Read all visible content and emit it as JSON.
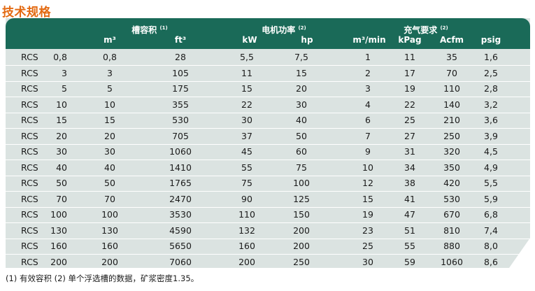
{
  "title": "技术规格",
  "header": {
    "tank_volume": "槽容积",
    "tank_volume_note": "(1)",
    "motor_power": "电机功率",
    "motor_power_note": "(2)",
    "air_req": "充气要求",
    "air_req_note": "(2)",
    "units": [
      "m³",
      "ft³",
      "kW",
      "hp",
      "m³/min",
      "kPag",
      "Acfm",
      "psig"
    ]
  },
  "rows": [
    {
      "model": "RCS",
      "size": "0,8",
      "m3": "0,8",
      "ft3": "28",
      "kw": "5,5",
      "hp": "7,5",
      "m3min": "1",
      "kpag": "11",
      "acfm": "35",
      "psig": "1,6"
    },
    {
      "model": "RCS",
      "size": "3",
      "m3": "3",
      "ft3": "105",
      "kw": "11",
      "hp": "15",
      "m3min": "2",
      "kpag": "17",
      "acfm": "70",
      "psig": "2,5"
    },
    {
      "model": "RCS",
      "size": "5",
      "m3": "5",
      "ft3": "175",
      "kw": "15",
      "hp": "20",
      "m3min": "3",
      "kpag": "19",
      "acfm": "110",
      "psig": "2,8"
    },
    {
      "model": "RCS",
      "size": "10",
      "m3": "10",
      "ft3": "355",
      "kw": "22",
      "hp": "30",
      "m3min": "4",
      "kpag": "22",
      "acfm": "140",
      "psig": "3,2"
    },
    {
      "model": "RCS",
      "size": "15",
      "m3": "15",
      "ft3": "530",
      "kw": "30",
      "hp": "40",
      "m3min": "6",
      "kpag": "25",
      "acfm": "210",
      "psig": "3,6"
    },
    {
      "model": "RCS",
      "size": "20",
      "m3": "20",
      "ft3": "705",
      "kw": "37",
      "hp": "50",
      "m3min": "7",
      "kpag": "27",
      "acfm": "250",
      "psig": "3,9"
    },
    {
      "model": "RCS",
      "size": "30",
      "m3": "30",
      "ft3": "1060",
      "kw": "45",
      "hp": "60",
      "m3min": "9",
      "kpag": "31",
      "acfm": "320",
      "psig": "4,5"
    },
    {
      "model": "RCS",
      "size": "40",
      "m3": "40",
      "ft3": "1410",
      "kw": "55",
      "hp": "75",
      "m3min": "10",
      "kpag": "34",
      "acfm": "350",
      "psig": "4,9"
    },
    {
      "model": "RCS",
      "size": "50",
      "m3": "50",
      "ft3": "1765",
      "kw": "75",
      "hp": "100",
      "m3min": "12",
      "kpag": "38",
      "acfm": "420",
      "psig": "5,5"
    },
    {
      "model": "RCS",
      "size": "70",
      "m3": "70",
      "ft3": "2470",
      "kw": "90",
      "hp": "125",
      "m3min": "15",
      "kpag": "41",
      "acfm": "530",
      "psig": "5,9"
    },
    {
      "model": "RCS",
      "size": "100",
      "m3": "100",
      "ft3": "3530",
      "kw": "110",
      "hp": "150",
      "m3min": "19",
      "kpag": "47",
      "acfm": "670",
      "psig": "6,8"
    },
    {
      "model": "RCS",
      "size": "130",
      "m3": "130",
      "ft3": "4590",
      "kw": "132",
      "hp": "200",
      "m3min": "23",
      "kpag": "51",
      "acfm": "810",
      "psig": "7,4"
    },
    {
      "model": "RCS",
      "size": "160",
      "m3": "160",
      "ft3": "5650",
      "kw": "160",
      "hp": "200",
      "m3min": "25",
      "kpag": "55",
      "acfm": "880",
      "psig": "8,0"
    },
    {
      "model": "RCS",
      "size": "200",
      "m3": "200",
      "ft3": "7060",
      "kw": "200",
      "hp": "250",
      "m3min": "30",
      "kpag": "59",
      "acfm": "1060",
      "psig": "8,6"
    }
  ],
  "footnote": "(1) 有效容积 (2) 单个浮选槽的数据，矿浆密度1.35。",
  "colors": {
    "title": "#e36a12",
    "header_bg": "#1a6a58",
    "body_bg": "#dbe3e1",
    "row_line": "#ffffff"
  }
}
